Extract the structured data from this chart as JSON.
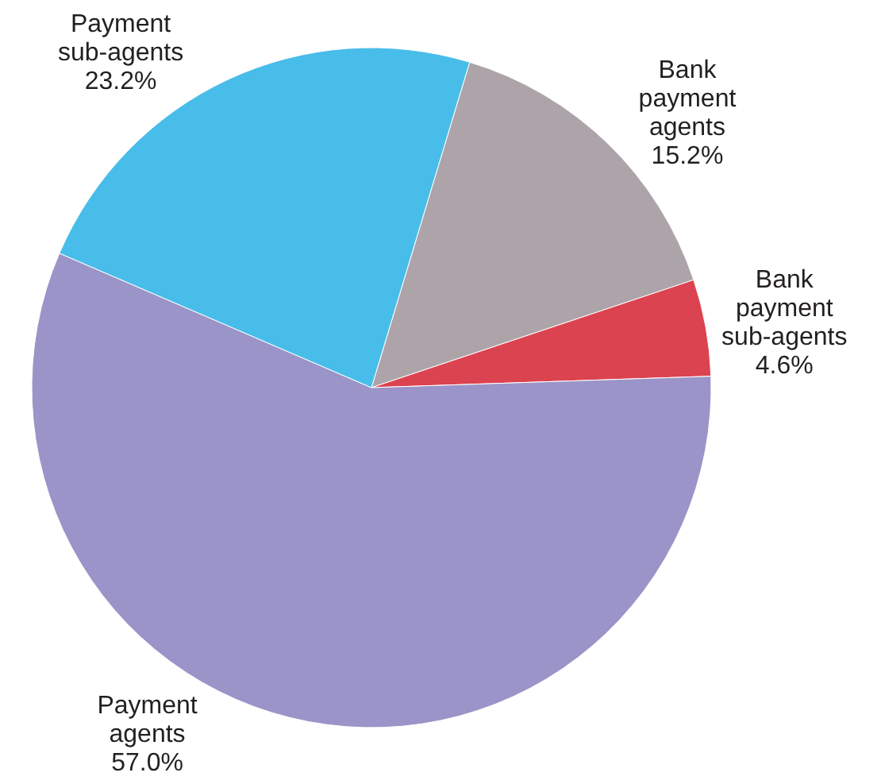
{
  "chart_data": {
    "type": "pie",
    "categories": [
      "Bank payment agents",
      "Bank payment sub-agents",
      "Payment agents",
      "Payment sub-agents"
    ],
    "values": [
      15.2,
      4.6,
      57.0,
      23.2
    ],
    "value_labels": [
      "15.2%",
      "4.6%",
      "57.0%",
      "23.2%"
    ],
    "colors": [
      "#ada4aa",
      "#dc4350",
      "#9b94c8",
      "#48bde9"
    ]
  }
}
